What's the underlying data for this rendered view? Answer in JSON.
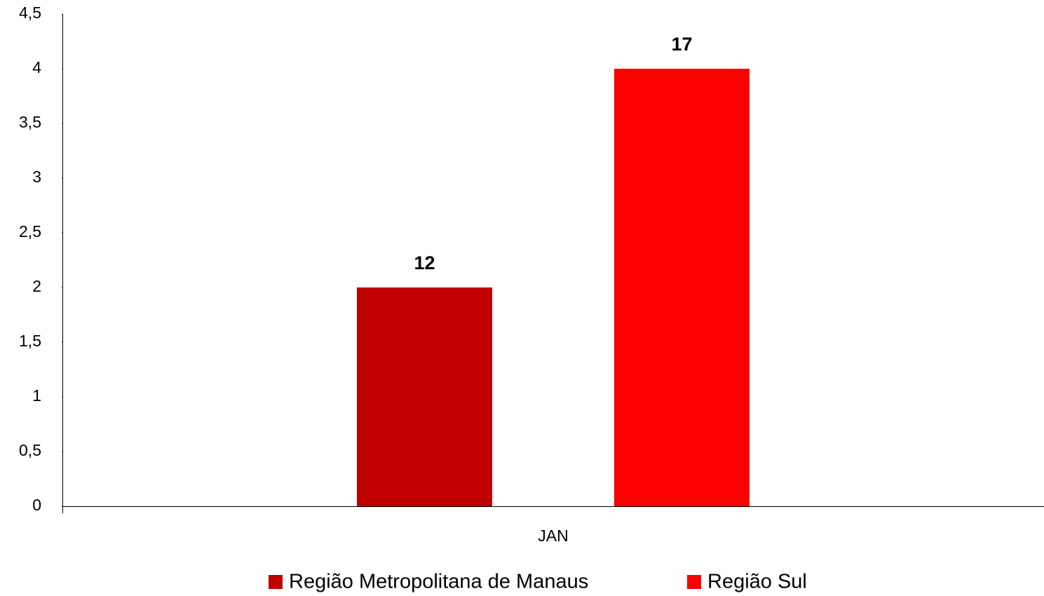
{
  "chart_data": {
    "type": "bar",
    "categories": [
      "JAN"
    ],
    "series": [
      {
        "name": "Região Metropolitana de Manaus",
        "color": "#c00000",
        "values": [
          2
        ]
      },
      {
        "name": "Região Sul",
        "color": "#ff0000",
        "values": [
          4
        ]
      }
    ],
    "annotations": [
      "12",
      "17"
    ],
    "ylim": [
      0,
      4.5
    ],
    "yticks": [
      0,
      {
        "value": 0.5,
        "label": "0,5"
      },
      1,
      {
        "value": 1.5,
        "label": "1,5"
      },
      2,
      {
        "value": 2.5,
        "label": "2,5"
      },
      3,
      {
        "value": 3.5,
        "label": "3,5"
      },
      4,
      {
        "value": 4.5,
        "label": "4,5"
      }
    ],
    "grid": false
  }
}
